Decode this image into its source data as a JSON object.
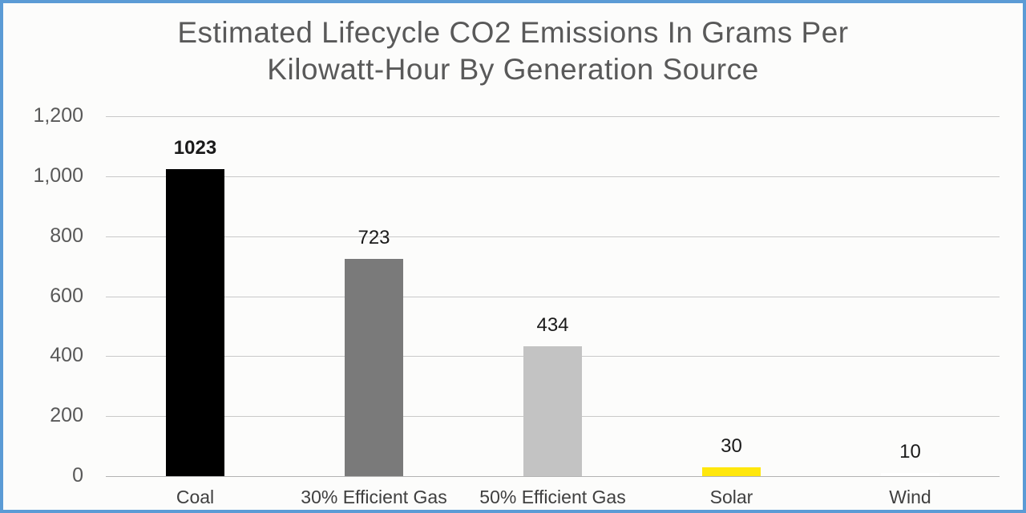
{
  "window": {
    "border_color": "#5b9bd5",
    "background": "#fcfcfb"
  },
  "title": {
    "line1": "Estimated Lifecycle CO2 Emissions In Grams Per",
    "line2": "Kilowatt-Hour By Generation Source",
    "color": "#595959"
  },
  "chart_data": {
    "type": "bar",
    "title": "Estimated Lifecycle CO2 Emissions In Grams Per Kilowatt-Hour By Generation Source",
    "categories": [
      "Coal",
      "30% Efficient Gas",
      "50% Efficient Gas",
      "Solar",
      "Wind"
    ],
    "values": [
      1023,
      723,
      434,
      30,
      10
    ],
    "value_labels": [
      "1023",
      "723",
      "434",
      "30",
      "10"
    ],
    "value_label_bold": [
      true,
      false,
      false,
      false,
      false
    ],
    "bar_colors": [
      "#000000",
      "#7a7a7a",
      "#c3c3c3",
      "#ffe70c",
      "#ffffff"
    ],
    "y_ticks": [
      {
        "value": 0,
        "label": "0"
      },
      {
        "value": 200,
        "label": "200"
      },
      {
        "value": 400,
        "label": "400"
      },
      {
        "value": 600,
        "label": "600"
      },
      {
        "value": 800,
        "label": "800"
      },
      {
        "value": 1000,
        "label": "1,000"
      },
      {
        "value": 1200,
        "label": "1,200"
      }
    ],
    "ylim": [
      0,
      1200
    ],
    "xlabel": "",
    "ylabel": "",
    "grid": true,
    "legend": false,
    "colors": {
      "tick_label": "#595959",
      "category_label": "#3f3f3f",
      "value_label": "#1a1a1a",
      "gridline": "#c9c9c9",
      "axis_line": "#b3b3b3"
    }
  }
}
